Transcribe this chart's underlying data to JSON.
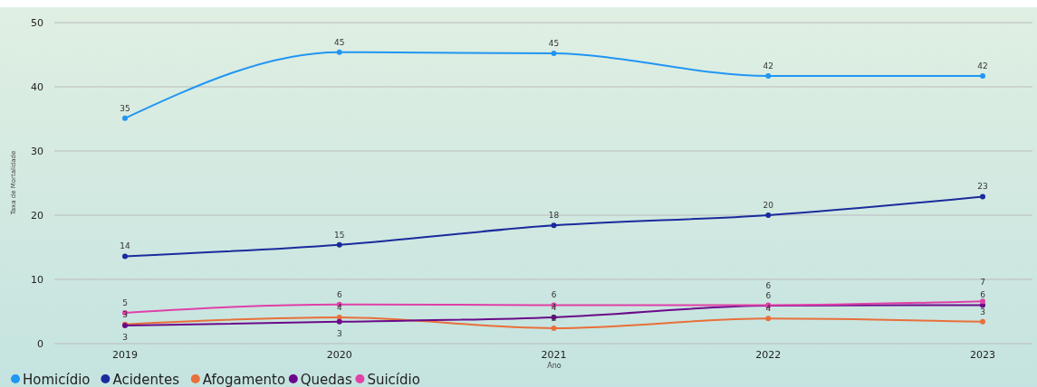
{
  "chart_data": {
    "type": "line",
    "xlabel": "Ano",
    "ylabel": "Taxa de Mortalidade",
    "categories": [
      "2019",
      "2020",
      "2021",
      "2022",
      "2023"
    ],
    "series": [
      {
        "name": "Homicídio",
        "color": "#2196f3",
        "values": [
          35.1,
          45.4,
          45.2,
          41.7,
          41.7
        ],
        "value_labels": [
          "35",
          "45",
          "45",
          "42",
          "42"
        ]
      },
      {
        "name": "Acidentes",
        "color": "#1a2b9c",
        "values": [
          13.6,
          15.4,
          18.4,
          20.0,
          22.9
        ],
        "value_labels": [
          "14",
          "15",
          "18",
          "20",
          "23"
        ]
      },
      {
        "name": "Afogamento",
        "color": "#e8703a",
        "values": [
          3.0,
          4.1,
          2.4,
          3.9,
          3.4
        ],
        "value_labels": [
          "3",
          "4",
          "2",
          "4",
          "3"
        ]
      },
      {
        "name": "Quedas",
        "color": "#6a0a8a",
        "values": [
          2.8,
          3.4,
          4.1,
          5.9,
          6.0
        ],
        "value_labels": [
          "3",
          "3",
          "4",
          "6",
          "6"
        ]
      },
      {
        "name": "Suicídio",
        "color": "#e040a8",
        "values": [
          4.8,
          6.1,
          6.0,
          6.0,
          6.6
        ],
        "value_labels": [
          "5",
          "6",
          "6",
          "6",
          "7"
        ]
      }
    ],
    "ylim": [
      0,
      50
    ],
    "yticks": [
      0,
      10,
      20,
      30,
      40,
      50
    ],
    "grid": "y",
    "legend": "bottom left",
    "marker": "circle"
  }
}
